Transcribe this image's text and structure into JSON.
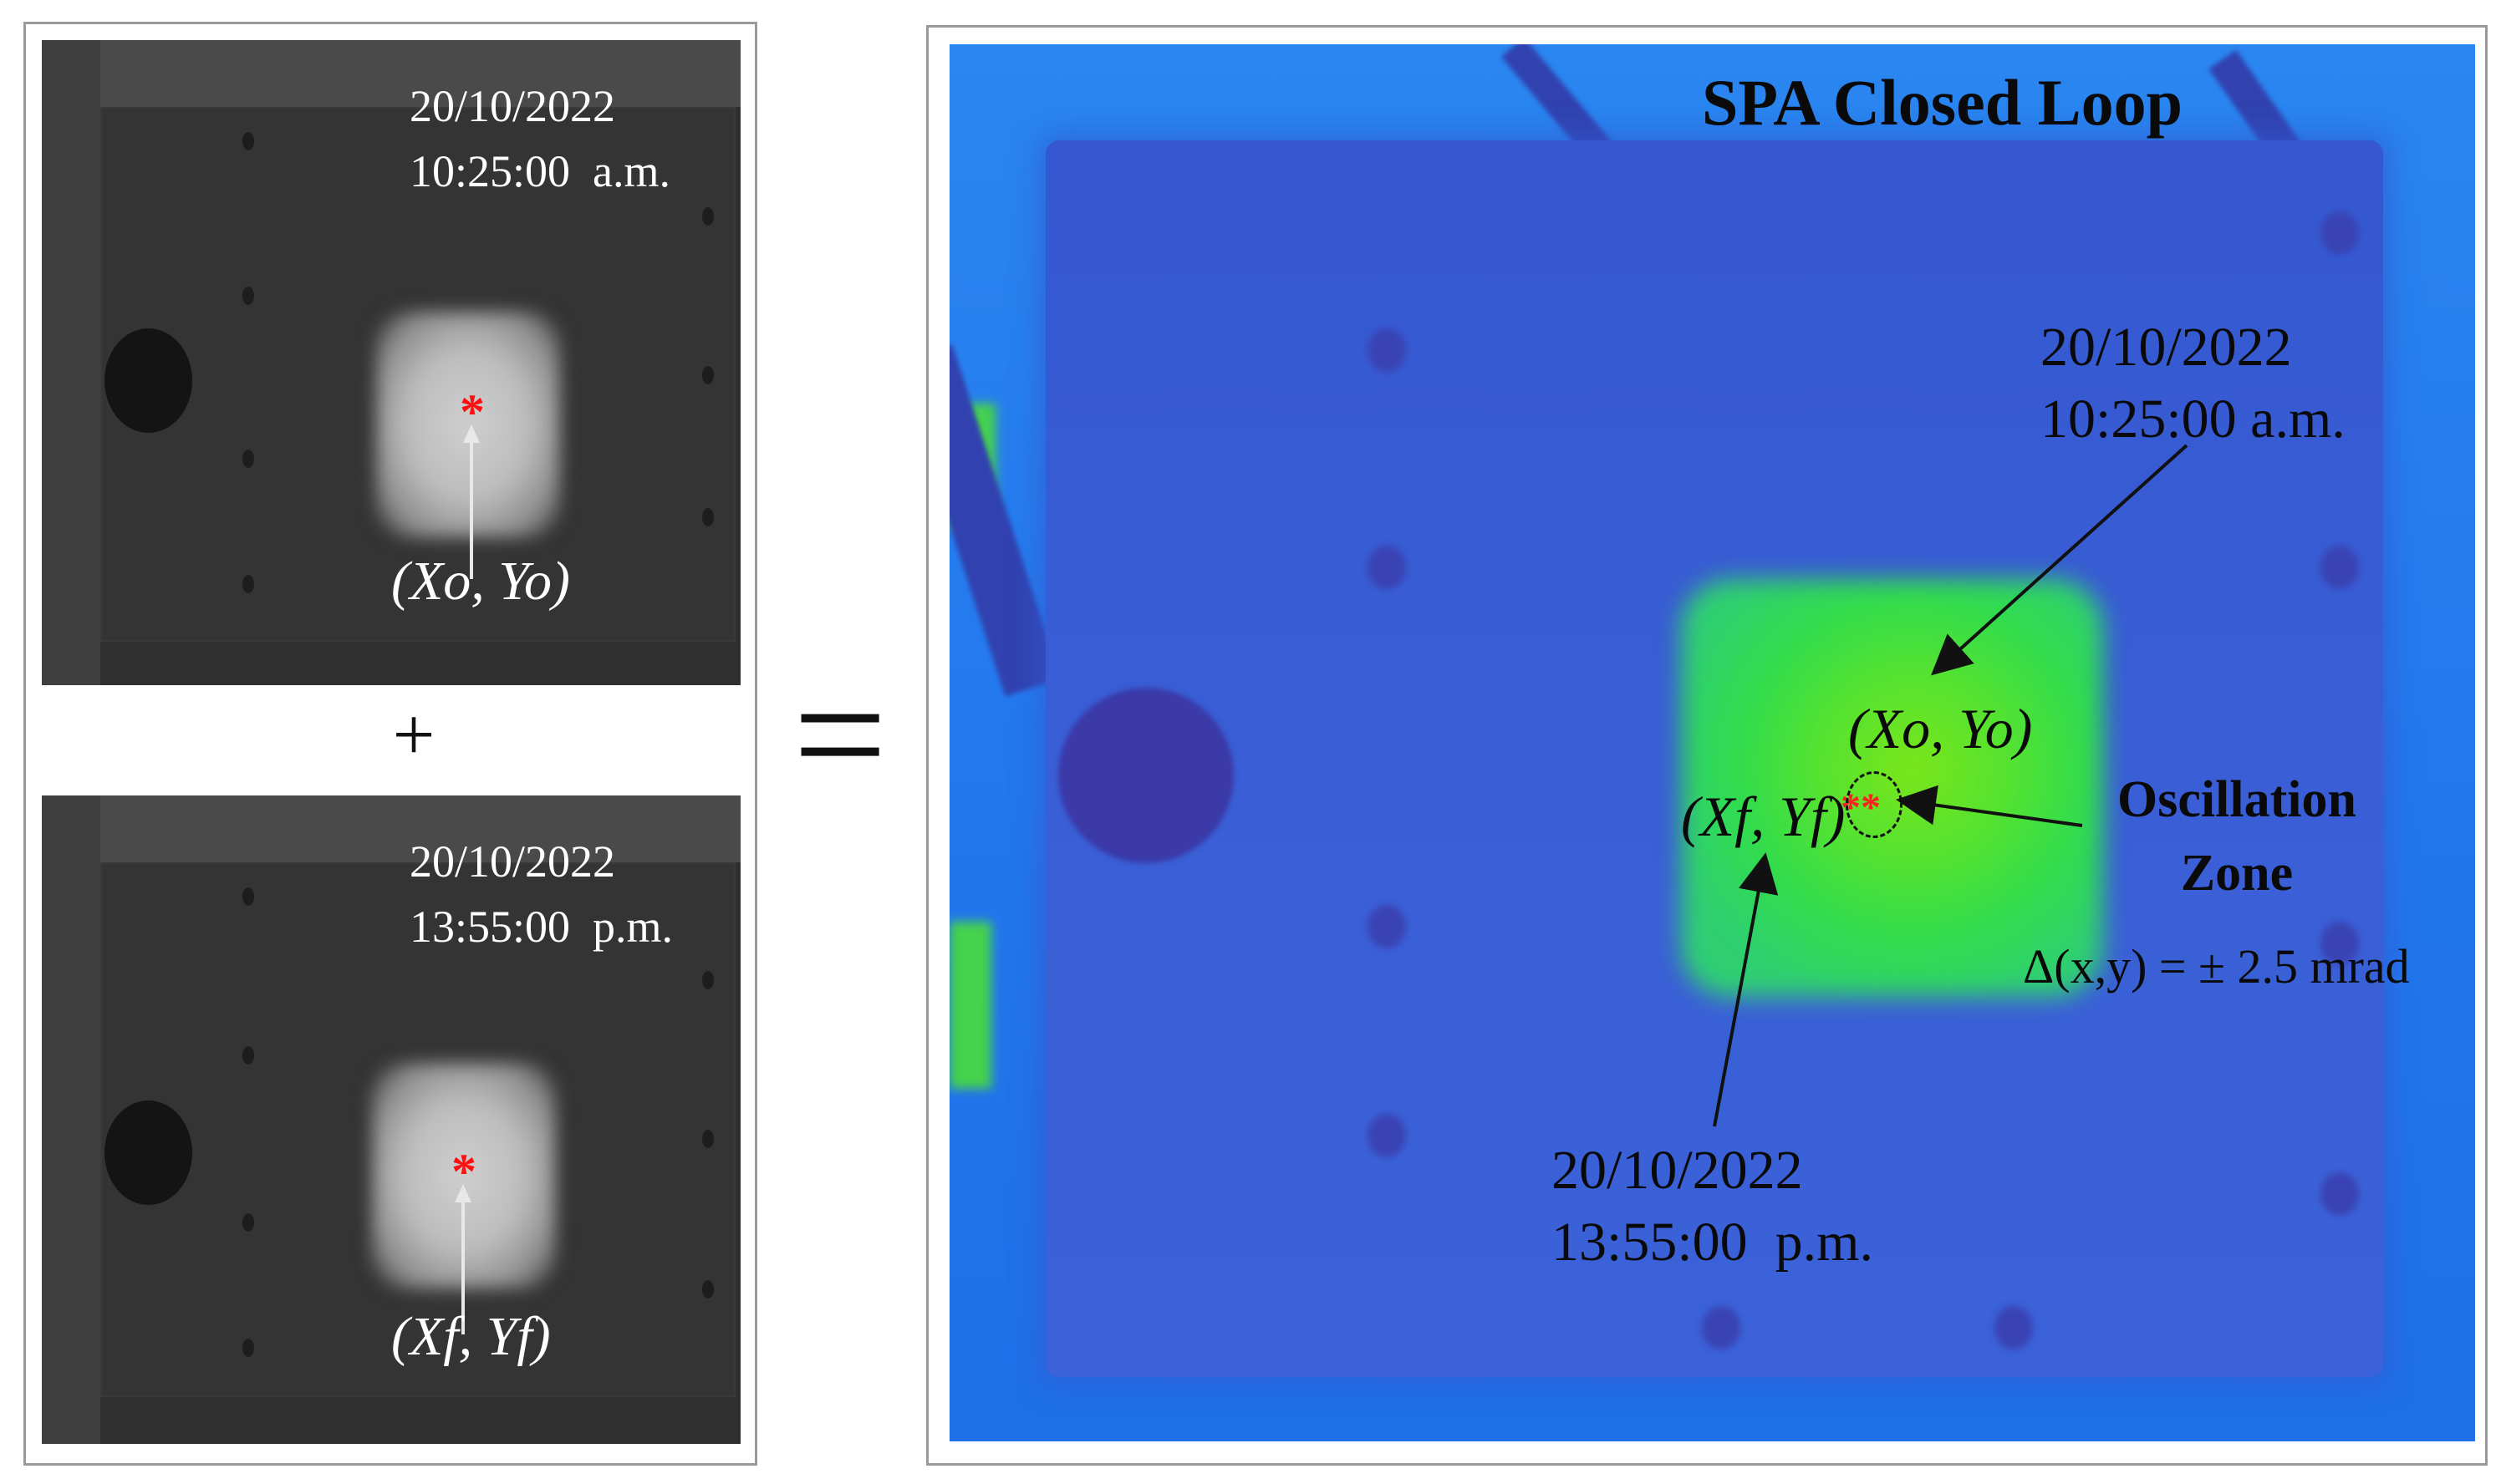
{
  "top_image": {
    "date": "20/10/2022",
    "time": "10:25:00  a.m.",
    "marker": "*",
    "label": "(Xo, Yo)"
  },
  "operator_plus": "+",
  "bottom_image": {
    "date": "20/10/2022",
    "time": "13:55:00  p.m.",
    "marker": "*",
    "label": "(Xf, Yf)"
  },
  "operator_equals": "=",
  "thermal": {
    "title": "SPA Closed Loop",
    "start_date": "20/10/2022",
    "start_time": "10:25:00 a.m.",
    "start_label": "(Xo, Yo)",
    "end_label": "(Xf, Yf)",
    "end_date": "20/10/2022",
    "end_time": "13:55:00  p.m.",
    "markers": "**",
    "zone_line1": "Oscillation",
    "zone_line2": "Zone",
    "delta": "Δ(x,y) = ± 2.5 mrad"
  }
}
